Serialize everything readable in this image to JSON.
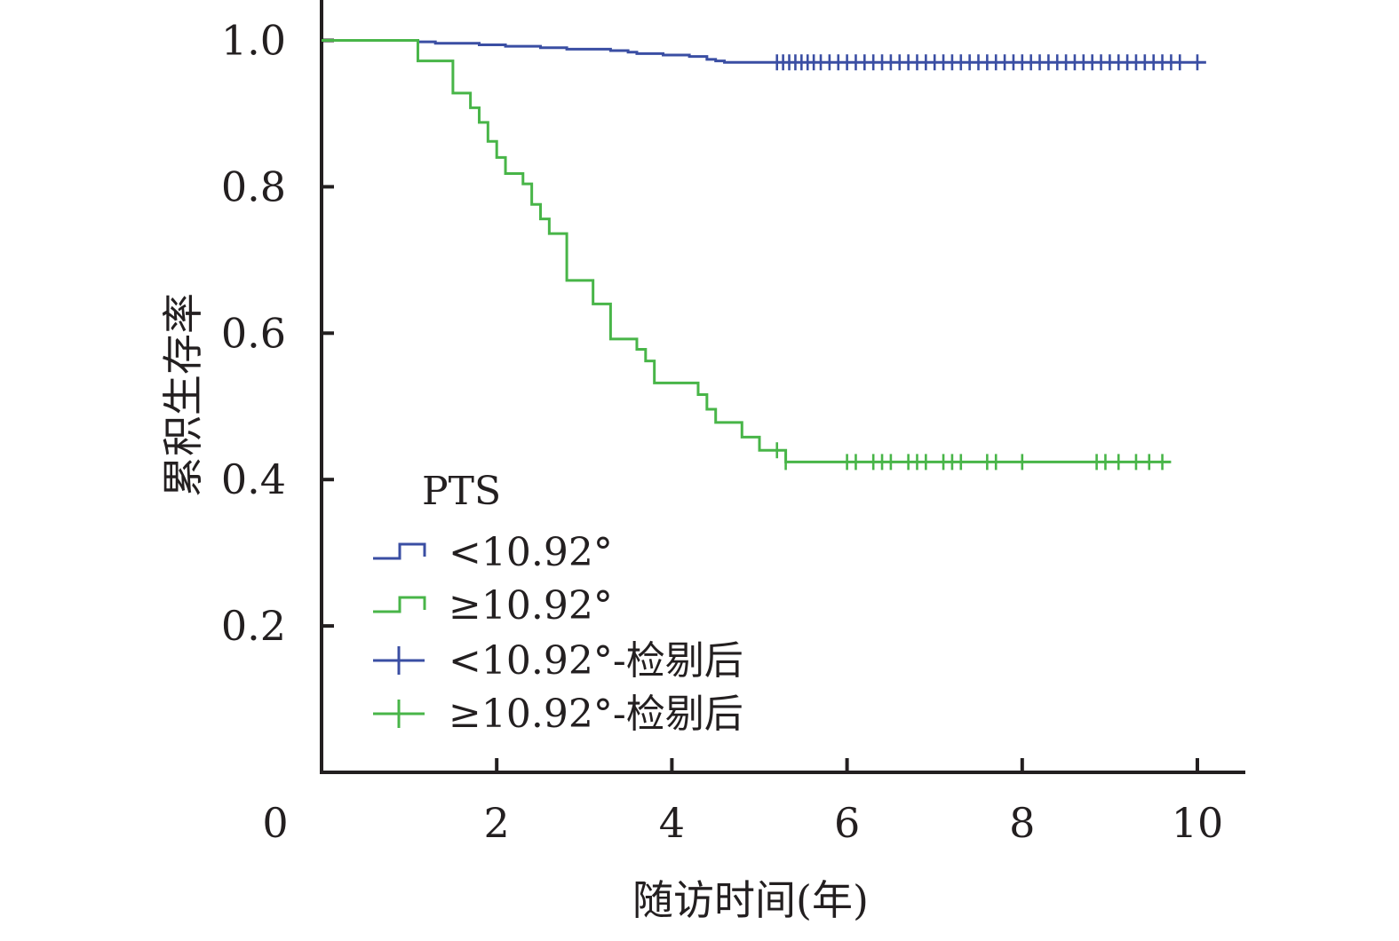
{
  "chart_data": {
    "type": "line",
    "subtype": "kaplan-meier-step",
    "title": "",
    "xlabel": "随访时间(年)",
    "ylabel": "累积生存率",
    "xlim": [
      0,
      10.5
    ],
    "ylim": [
      0,
      1.0
    ],
    "x_ticks": [
      2,
      4,
      6,
      8,
      10
    ],
    "x_tick_labels": [
      "2",
      "4",
      "6",
      "8",
      "10"
    ],
    "origin_label": "0",
    "y_ticks": [
      0.2,
      0.4,
      0.6,
      0.8,
      1.0
    ],
    "y_tick_labels": [
      "0.2",
      "0.4",
      "0.6",
      "0.8",
      "1.0"
    ],
    "grid": false,
    "legend": {
      "placement": "bottom-left",
      "title": "PTS",
      "entries": [
        {
          "label": "<10.92°",
          "symbol": "step",
          "color": "#3a4ea3"
        },
        {
          "label": "≥10.92°",
          "symbol": "step",
          "color": "#48b548"
        },
        {
          "label": "<10.92°-检剔后",
          "symbol": "cross",
          "color": "#3a4ea3"
        },
        {
          "label": "≥10.92°-检剔后",
          "symbol": "cross",
          "color": "#48b548"
        }
      ]
    },
    "series": [
      {
        "name": "<10.92°",
        "color": "#3a4ea3",
        "steps": [
          [
            0,
            1.0
          ],
          [
            1.1,
            0.998
          ],
          [
            1.3,
            0.996
          ],
          [
            1.8,
            0.994
          ],
          [
            2.1,
            0.992
          ],
          [
            2.5,
            0.99
          ],
          [
            2.8,
            0.988
          ],
          [
            3.3,
            0.986
          ],
          [
            3.5,
            0.984
          ],
          [
            3.6,
            0.982
          ],
          [
            3.9,
            0.98
          ],
          [
            4.2,
            0.978
          ],
          [
            4.4,
            0.974
          ],
          [
            4.5,
            0.972
          ],
          [
            4.6,
            0.97
          ],
          [
            10.1,
            0.97
          ]
        ],
        "censored": [
          5.2,
          5.27,
          5.34,
          5.41,
          5.48,
          5.55,
          5.62,
          5.7,
          5.8,
          5.9,
          6.0,
          6.1,
          6.2,
          6.3,
          6.4,
          6.5,
          6.6,
          6.7,
          6.8,
          6.9,
          7.0,
          7.1,
          7.2,
          7.3,
          7.4,
          7.5,
          7.6,
          7.7,
          7.8,
          7.9,
          8.0,
          8.1,
          8.2,
          8.3,
          8.4,
          8.5,
          8.6,
          8.7,
          8.8,
          8.9,
          9.0,
          9.1,
          9.2,
          9.3,
          9.4,
          9.5,
          9.6,
          9.7,
          9.8,
          10.0
        ]
      },
      {
        "name": "≥10.92°",
        "color": "#48b548",
        "steps": [
          [
            0,
            1.0
          ],
          [
            1.1,
            0.972
          ],
          [
            1.5,
            0.928
          ],
          [
            1.7,
            0.908
          ],
          [
            1.8,
            0.888
          ],
          [
            1.9,
            0.862
          ],
          [
            2.0,
            0.84
          ],
          [
            2.1,
            0.818
          ],
          [
            2.3,
            0.804
          ],
          [
            2.4,
            0.776
          ],
          [
            2.5,
            0.756
          ],
          [
            2.6,
            0.736
          ],
          [
            2.8,
            0.672
          ],
          [
            3.1,
            0.64
          ],
          [
            3.3,
            0.592
          ],
          [
            3.6,
            0.578
          ],
          [
            3.7,
            0.562
          ],
          [
            3.8,
            0.532
          ],
          [
            4.3,
            0.516
          ],
          [
            4.4,
            0.496
          ],
          [
            4.5,
            0.478
          ],
          [
            4.8,
            0.458
          ],
          [
            5.0,
            0.44
          ],
          [
            5.3,
            0.424
          ],
          [
            9.7,
            0.424
          ]
        ],
        "censored": [
          5.2,
          5.3,
          6.0,
          6.1,
          6.3,
          6.4,
          6.5,
          6.7,
          6.8,
          6.9,
          7.1,
          7.2,
          7.3,
          7.6,
          7.7,
          8.0,
          8.85,
          8.95,
          9.1,
          9.3,
          9.45,
          9.6
        ]
      }
    ]
  }
}
